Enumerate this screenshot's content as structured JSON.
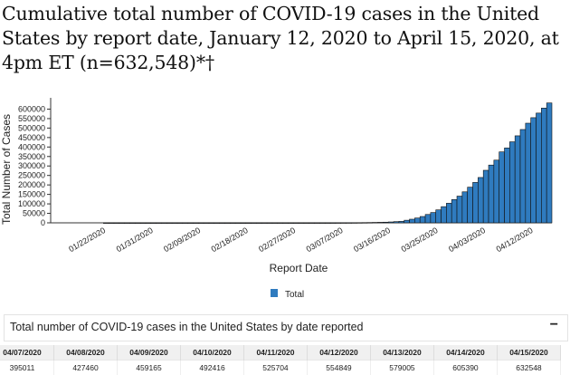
{
  "title": "Cumulative total number of COVID-19 cases in the United States by report date, January 12, 2020 to April 15, 2020, at 4pm ET (n=632,548)*†",
  "chart_data": {
    "type": "bar",
    "xlabel": "Report Date",
    "ylabel": "Total Number of Cases",
    "ylim": [
      0,
      650000
    ],
    "yticks": [
      0,
      50000,
      100000,
      150000,
      200000,
      250000,
      300000,
      350000,
      400000,
      450000,
      500000,
      550000,
      600000
    ],
    "x_tick_labels": [
      "01/22/2020",
      "01/31/2020",
      "02/09/2020",
      "02/18/2020",
      "02/27/2020",
      "03/07/2020",
      "03/16/2020",
      "03/25/2020",
      "04/03/2020",
      "04/12/2020"
    ],
    "legend": {
      "position": "bottom",
      "entries": [
        "Total"
      ]
    },
    "color": "#2f7bbf",
    "series": [
      {
        "name": "Total",
        "dates": [
          "01/12/2020",
          "01/13/2020",
          "01/14/2020",
          "01/15/2020",
          "01/16/2020",
          "01/17/2020",
          "01/18/2020",
          "01/19/2020",
          "01/20/2020",
          "01/21/2020",
          "01/22/2020",
          "01/23/2020",
          "01/24/2020",
          "01/25/2020",
          "01/26/2020",
          "01/27/2020",
          "01/28/2020",
          "01/29/2020",
          "01/30/2020",
          "01/31/2020",
          "02/01/2020",
          "02/02/2020",
          "02/03/2020",
          "02/04/2020",
          "02/05/2020",
          "02/06/2020",
          "02/07/2020",
          "02/08/2020",
          "02/09/2020",
          "02/10/2020",
          "02/11/2020",
          "02/12/2020",
          "02/13/2020",
          "02/14/2020",
          "02/15/2020",
          "02/16/2020",
          "02/17/2020",
          "02/18/2020",
          "02/19/2020",
          "02/20/2020",
          "02/21/2020",
          "02/22/2020",
          "02/23/2020",
          "02/24/2020",
          "02/25/2020",
          "02/26/2020",
          "02/27/2020",
          "02/28/2020",
          "02/29/2020",
          "03/01/2020",
          "03/02/2020",
          "03/03/2020",
          "03/04/2020",
          "03/05/2020",
          "03/06/2020",
          "03/07/2020",
          "03/08/2020",
          "03/09/2020",
          "03/10/2020",
          "03/11/2020",
          "03/12/2020",
          "03/13/2020",
          "03/14/2020",
          "03/15/2020",
          "03/16/2020",
          "03/17/2020",
          "03/18/2020",
          "03/19/2020",
          "03/20/2020",
          "03/21/2020",
          "03/22/2020",
          "03/23/2020",
          "03/24/2020",
          "03/25/2020",
          "03/26/2020",
          "03/27/2020",
          "03/28/2020",
          "03/29/2020",
          "03/30/2020",
          "03/31/2020",
          "04/01/2020",
          "04/02/2020",
          "04/03/2020",
          "04/04/2020",
          "04/05/2020",
          "04/06/2020",
          "04/07/2020",
          "04/08/2020",
          "04/09/2020",
          "04/10/2020",
          "04/11/2020",
          "04/12/2020",
          "04/13/2020",
          "04/14/2020",
          "04/15/2020"
        ],
        "values": [
          0,
          0,
          0,
          0,
          0,
          0,
          0,
          0,
          0,
          0,
          1,
          1,
          2,
          2,
          5,
          5,
          5,
          5,
          6,
          7,
          8,
          11,
          11,
          11,
          12,
          12,
          12,
          12,
          12,
          12,
          13,
          13,
          14,
          15,
          15,
          15,
          15,
          15,
          15,
          15,
          35,
          35,
          35,
          53,
          53,
          59,
          60,
          62,
          70,
          75,
          100,
          124,
          158,
          221,
          319,
          435,
          541,
          704,
          994,
          1301,
          1630,
          2183,
          2726,
          3499,
          4632,
          6421,
          7786,
          13680,
          19101,
          25493,
          33404,
          44183,
          54453,
          68440,
          85356,
          103321,
          122653,
          140904,
          163539,
          188172,
          213144,
          239279,
          277205,
          304826,
          330891,
          374329,
          395011,
          427460,
          459165,
          492416,
          525704,
          554849,
          579005,
          605390,
          632548
        ]
      }
    ]
  },
  "table": {
    "title": "Total number of COVID-19 cases in the United States by date reported",
    "toggle": "−",
    "headers": [
      "04/07/2020",
      "04/08/2020",
      "04/09/2020",
      "04/10/2020",
      "04/11/2020",
      "04/12/2020",
      "04/13/2020",
      "04/14/2020",
      "04/15/2020"
    ],
    "values": [
      "395011",
      "427460",
      "459165",
      "492416",
      "525704",
      "554849",
      "579005",
      "605390",
      "632548"
    ]
  }
}
